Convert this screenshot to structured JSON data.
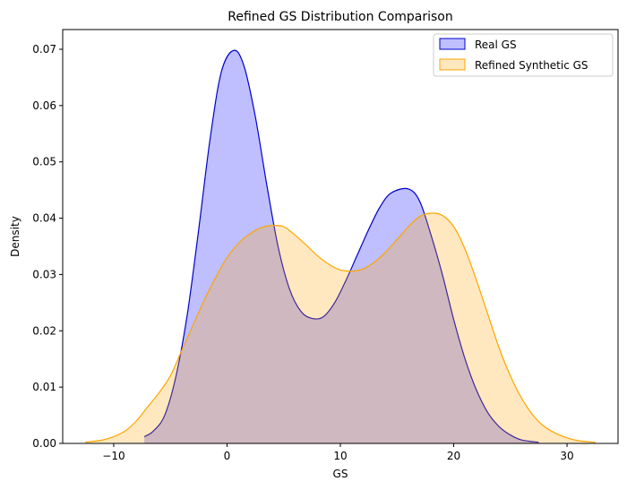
{
  "chart_data": {
    "type": "area",
    "title": "Refined GS Distribution Comparison",
    "xlabel": "GS",
    "ylabel": "Density",
    "xlim": [
      -14.5,
      34.5
    ],
    "ylim": [
      0,
      0.0735
    ],
    "xticks": [
      -10,
      0,
      10,
      20,
      30
    ],
    "xtick_labels": [
      "−10",
      "0",
      "10",
      "20",
      "30"
    ],
    "yticks": [
      0,
      0.01,
      0.02,
      0.03,
      0.04,
      0.05,
      0.06,
      0.07
    ],
    "ytick_labels": [
      "0.00",
      "0.01",
      "0.02",
      "0.03",
      "0.04",
      "0.05",
      "0.06",
      "0.07"
    ],
    "grid": false,
    "legend_position": "top-right",
    "series": [
      {
        "name": "Real GS",
        "line_color": "#0000cc",
        "fill_color": "#0000ff",
        "points": [
          [
            -7.3,
            0.0012
          ],
          [
            -6.5,
            0.0022
          ],
          [
            -5.5,
            0.005
          ],
          [
            -4.5,
            0.012
          ],
          [
            -3.5,
            0.023
          ],
          [
            -2.5,
            0.038
          ],
          [
            -1.5,
            0.054
          ],
          [
            -0.5,
            0.066
          ],
          [
            0.6,
            0.0698
          ],
          [
            1.5,
            0.067
          ],
          [
            2.5,
            0.058
          ],
          [
            3.5,
            0.046
          ],
          [
            4.5,
            0.035
          ],
          [
            5.5,
            0.0275
          ],
          [
            6.5,
            0.0235
          ],
          [
            7.5,
            0.0222
          ],
          [
            8.5,
            0.0225
          ],
          [
            9.5,
            0.025
          ],
          [
            10.5,
            0.029
          ],
          [
            11.5,
            0.0335
          ],
          [
            12.5,
            0.038
          ],
          [
            13.5,
            0.042
          ],
          [
            14.5,
            0.0445
          ],
          [
            16.0,
            0.0452
          ],
          [
            17.0,
            0.043
          ],
          [
            18.0,
            0.037
          ],
          [
            19.0,
            0.03
          ],
          [
            20.0,
            0.022
          ],
          [
            21.0,
            0.015
          ],
          [
            22.0,
            0.0095
          ],
          [
            23.0,
            0.0055
          ],
          [
            24.0,
            0.003
          ],
          [
            25.0,
            0.0015
          ],
          [
            26.0,
            0.0006
          ],
          [
            27.5,
            0.0002
          ]
        ]
      },
      {
        "name": "Refined Synthetic GS",
        "line_color": "#ffa500",
        "fill_color": "#ffa500",
        "points": [
          [
            -12.5,
            0.0002
          ],
          [
            -11.0,
            0.0006
          ],
          [
            -10.0,
            0.0012
          ],
          [
            -9.0,
            0.0022
          ],
          [
            -8.0,
            0.004
          ],
          [
            -7.0,
            0.0065
          ],
          [
            -6.0,
            0.009
          ],
          [
            -5.0,
            0.012
          ],
          [
            -4.0,
            0.0165
          ],
          [
            -3.0,
            0.021
          ],
          [
            -2.0,
            0.0255
          ],
          [
            -1.0,
            0.0295
          ],
          [
            0.0,
            0.033
          ],
          [
            1.0,
            0.0355
          ],
          [
            2.0,
            0.0372
          ],
          [
            3.0,
            0.0383
          ],
          [
            4.0,
            0.0387
          ],
          [
            5.0,
            0.0385
          ],
          [
            6.0,
            0.037
          ],
          [
            7.0,
            0.0352
          ],
          [
            8.0,
            0.0333
          ],
          [
            9.0,
            0.0318
          ],
          [
            10.0,
            0.0308
          ],
          [
            11.0,
            0.0306
          ],
          [
            12.0,
            0.031
          ],
          [
            13.0,
            0.0322
          ],
          [
            14.0,
            0.034
          ],
          [
            15.0,
            0.0362
          ],
          [
            16.0,
            0.0385
          ],
          [
            17.0,
            0.0403
          ],
          [
            18.0,
            0.0409
          ],
          [
            19.0,
            0.0405
          ],
          [
            20.0,
            0.0385
          ],
          [
            21.0,
            0.0345
          ],
          [
            22.0,
            0.029
          ],
          [
            23.0,
            0.023
          ],
          [
            24.0,
            0.017
          ],
          [
            25.0,
            0.012
          ],
          [
            26.0,
            0.008
          ],
          [
            27.0,
            0.005
          ],
          [
            28.0,
            0.003
          ],
          [
            29.0,
            0.0018
          ],
          [
            30.0,
            0.001
          ],
          [
            31.0,
            0.0005
          ],
          [
            32.5,
            0.0002
          ]
        ]
      }
    ]
  }
}
